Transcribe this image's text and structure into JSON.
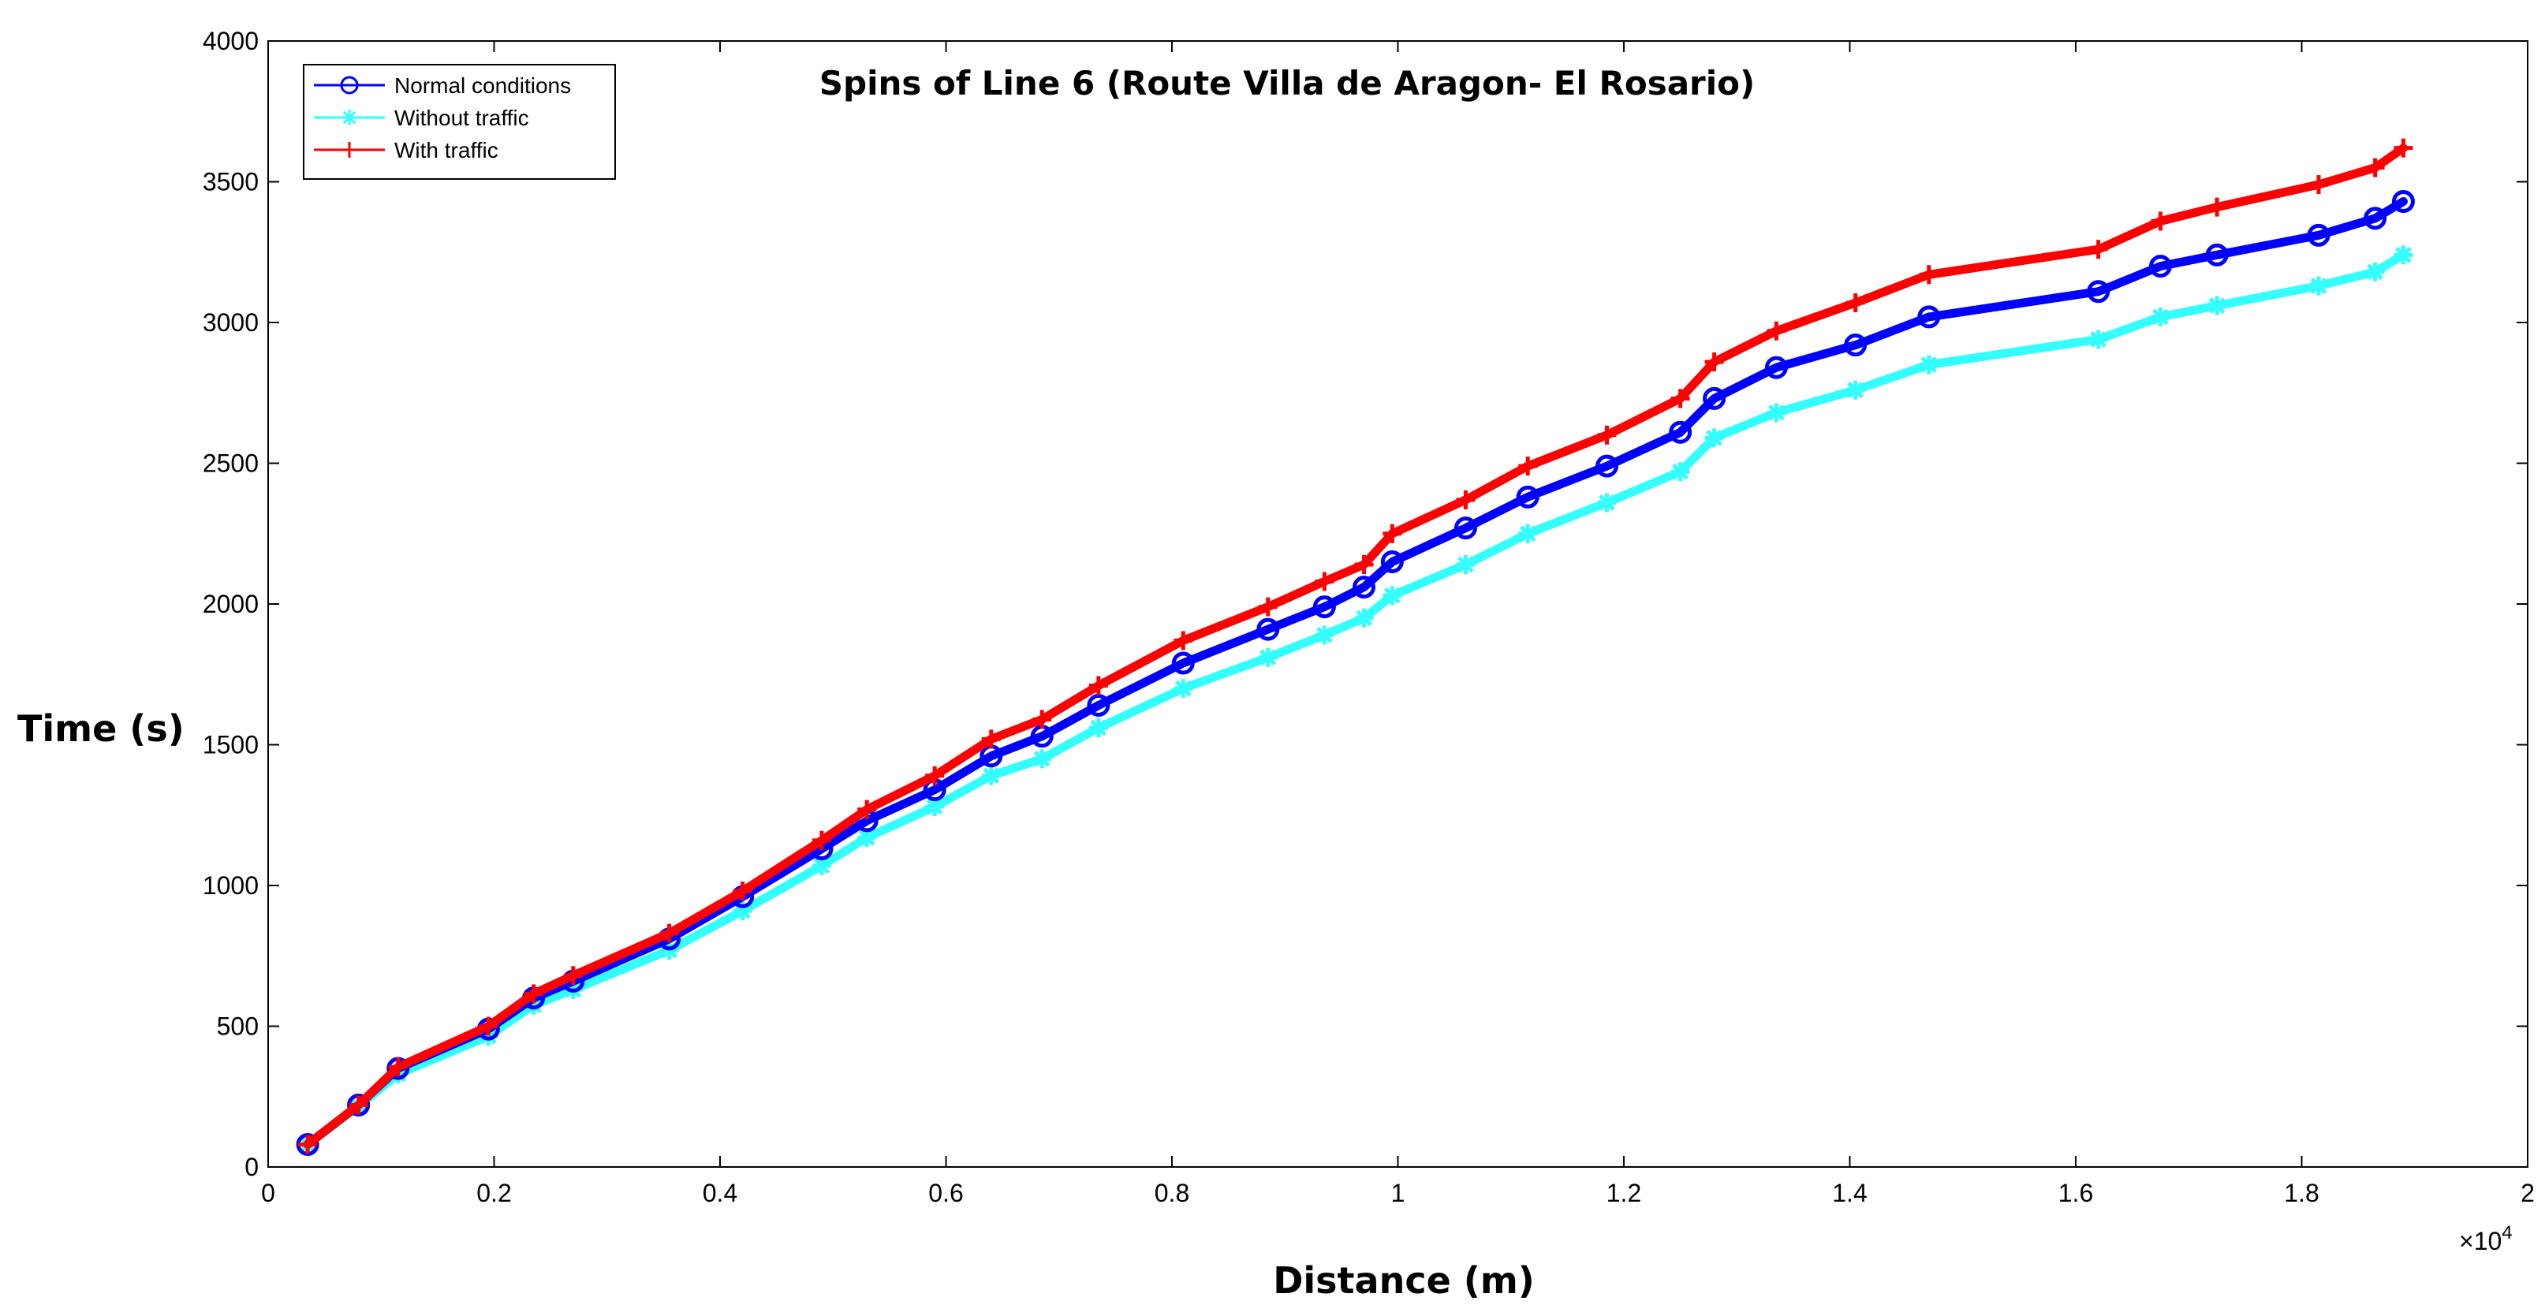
{
  "chart_data": {
    "type": "line",
    "title": "Spins of Line 6 (Route Villa de Aragon- El Rosario)",
    "xlabel": "Distance (m)",
    "ylabel": "Time (s)",
    "xlim": [
      0,
      20000
    ],
    "ylim": [
      0,
      4000
    ],
    "x_tick_labels": [
      "0",
      "0.2",
      "0.4",
      "0.6",
      "0.8",
      "1",
      "1.2",
      "1.4",
      "1.6",
      "1.8",
      "2"
    ],
    "x_tick_values": [
      0,
      2000,
      4000,
      6000,
      8000,
      10000,
      12000,
      14000,
      16000,
      18000,
      20000
    ],
    "x_exponent_base": "×10",
    "x_exponent_power": "4",
    "y_tick_labels": [
      "0",
      "500",
      "1000",
      "1500",
      "2000",
      "2500",
      "3000",
      "3500",
      "4000"
    ],
    "y_tick_values": [
      0,
      500,
      1000,
      1500,
      2000,
      2500,
      3000,
      3500,
      4000
    ],
    "legend_position": "top-left",
    "x": [
      350,
      800,
      1150,
      1950,
      2350,
      2700,
      3550,
      4200,
      4900,
      5300,
      5900,
      6400,
      6850,
      7350,
      8100,
      8850,
      9350,
      9700,
      9950,
      10600,
      11150,
      11850,
      12500,
      12800,
      13350,
      14050,
      14700,
      16200,
      16750,
      17250,
      18150,
      18650,
      18900
    ],
    "series": [
      {
        "name": "Normal conditions",
        "color": "#0000ff",
        "marker": "circle",
        "values": [
          80,
          220,
          350,
          490,
          600,
          660,
          810,
          960,
          1130,
          1230,
          1340,
          1460,
          1530,
          1640,
          1790,
          1910,
          1990,
          2060,
          2150,
          2270,
          2380,
          2490,
          2610,
          2730,
          2840,
          2920,
          3020,
          3110,
          3200,
          3240,
          3310,
          3370,
          3430
        ]
      },
      {
        "name": "Without traffic",
        "color": "#33ffff",
        "marker": "star",
        "values": [
          80,
          215,
          330,
          465,
          575,
          630,
          770,
          910,
          1070,
          1170,
          1280,
          1390,
          1450,
          1560,
          1700,
          1810,
          1890,
          1950,
          2030,
          2140,
          2250,
          2360,
          2470,
          2590,
          2680,
          2760,
          2850,
          2940,
          3020,
          3060,
          3130,
          3180,
          3240
        ]
      },
      {
        "name": "With traffic",
        "color": "#ff0000",
        "marker": "plus",
        "values": [
          80,
          220,
          355,
          500,
          615,
          680,
          830,
          980,
          1160,
          1270,
          1390,
          1520,
          1590,
          1710,
          1870,
          1990,
          2080,
          2140,
          2250,
          2370,
          2490,
          2600,
          2730,
          2860,
          2970,
          3070,
          3170,
          3260,
          3360,
          3410,
          3490,
          3550,
          3620
        ]
      }
    ]
  }
}
